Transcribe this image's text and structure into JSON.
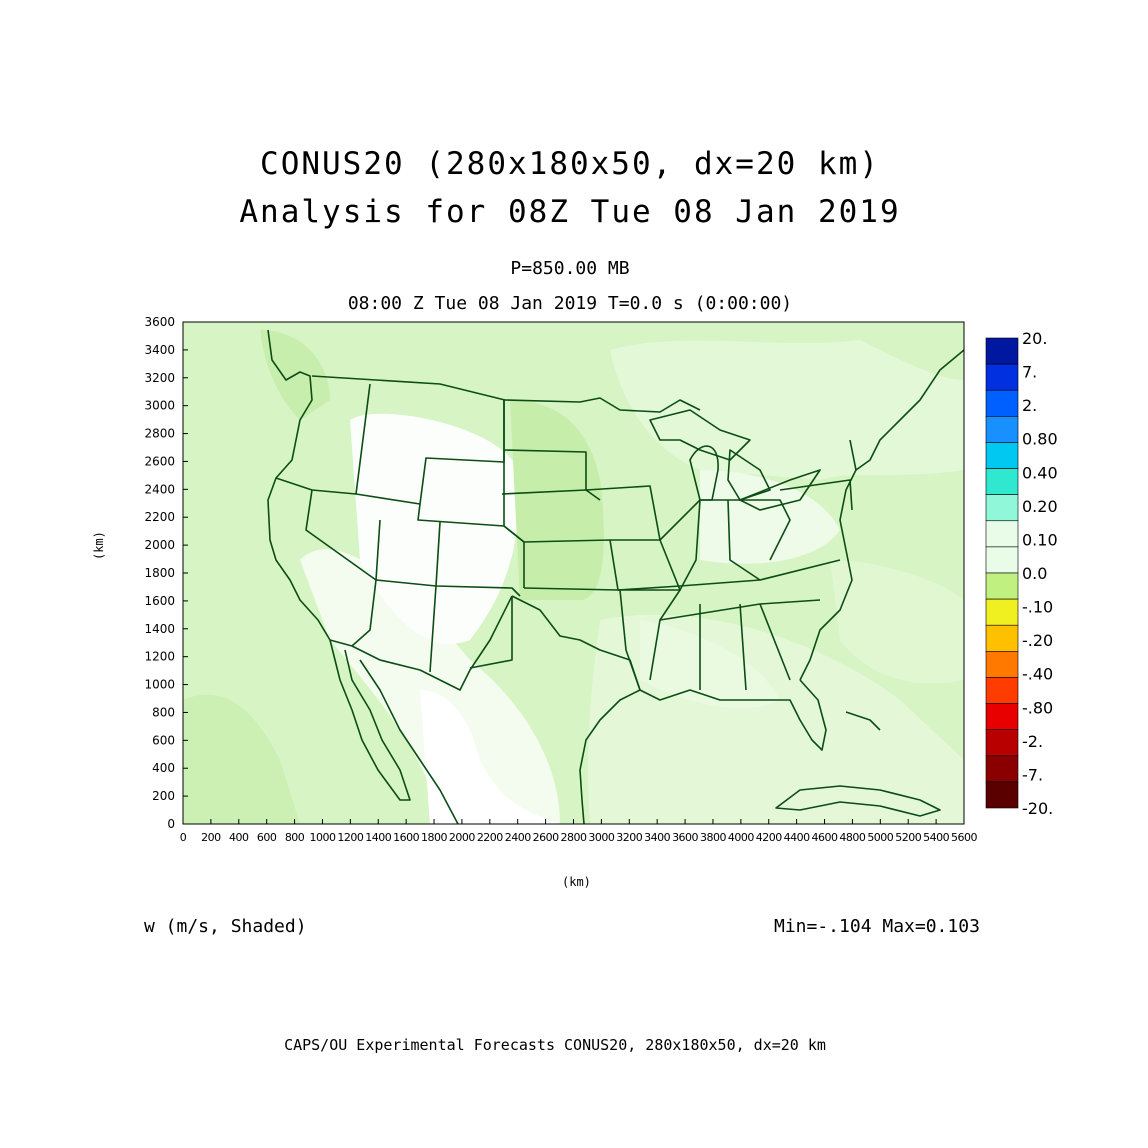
{
  "title": {
    "line1": "CONUS20 (280x180x50, dx=20 km)",
    "line2": "Analysis for 08Z Tue 08 Jan 2019"
  },
  "subtitle": {
    "level": "P=850.00 MB",
    "time": "08:00 Z Tue 08 Jan 2019   T=0.0 s (0:00:00)"
  },
  "axes": {
    "xlabel": "(km)",
    "ylabel": "(km)",
    "xticks": [
      "0",
      "200",
      "400",
      "600",
      "800",
      "1000",
      "1200",
      "1400",
      "1600",
      "1800",
      "2000",
      "2200",
      "2400",
      "2600",
      "2800",
      "3000",
      "3200",
      "3400",
      "3600",
      "3800",
      "4000",
      "4200",
      "4400",
      "4600",
      "4800",
      "5000",
      "5200",
      "5400",
      "5600"
    ],
    "yticks": [
      "0",
      "200",
      "400",
      "600",
      "800",
      "1000",
      "1200",
      "1400",
      "1600",
      "1800",
      "2000",
      "2200",
      "2400",
      "2600",
      "2800",
      "3000",
      "3200",
      "3400",
      "3600"
    ],
    "xlim": [
      0,
      5600
    ],
    "ylim": [
      0,
      3600
    ]
  },
  "colorbar": {
    "labels": [
      "20.",
      "7.",
      "2.",
      "0.80",
      "0.40",
      "0.20",
      "0.10",
      "0.0",
      "-.10",
      "-.20",
      "-.40",
      "-.80",
      "-2.",
      "-7.",
      "-20."
    ],
    "colors": [
      "#0018a0",
      "#0030e0",
      "#0060ff",
      "#1890ff",
      "#00c8f0",
      "#30e8d0",
      "#90f8d8",
      "#e8fce8",
      "#e8fce8",
      "#c0f080",
      "#f0f020",
      "#ffc000",
      "#ff7800",
      "#ff3c00",
      "#e80000",
      "#b80000",
      "#8a0000",
      "#5a0000"
    ]
  },
  "field_label": "w (m/s, Shaded)",
  "minmax": "Min=-.104  Max=0.103",
  "footer": "CAPS/OU Experimental Forecasts  CONUS20, 280x180x50, dx=20 km",
  "colors": {
    "boundary": "#0b4d14",
    "shade_light": "#d8f5c8",
    "shade_mid": "#c6eeaa",
    "shade_pale": "#eefbe8"
  }
}
